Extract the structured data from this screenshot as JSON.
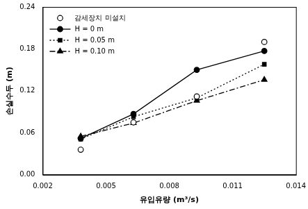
{
  "chart_data": {
    "type": "line",
    "x_label": "유입유량 (m³/s)",
    "y_label": "손실수두 (m)",
    "x": [
      0.0038,
      0.0063,
      0.0093,
      0.0125
    ],
    "series": [
      {
        "name": "감세장치 미설치",
        "color": "#000000",
        "marker": "open_circle",
        "line_style": "none",
        "values": [
          0.036,
          0.075,
          0.112,
          0.19
        ]
      },
      {
        "name": "H = 0 m",
        "color": "#000000",
        "marker": "circle",
        "line_style": "solid",
        "values": [
          0.052,
          0.087,
          0.15,
          0.177
        ]
      },
      {
        "name": "H = 0.05 m",
        "color": "#000000",
        "marker": "square",
        "line_style": "dotted",
        "values": [
          0.051,
          0.083,
          0.11,
          0.158
        ]
      },
      {
        "name": "H = 0.10 m",
        "color": "#000000",
        "marker": "triangle",
        "line_style": "dashdot",
        "values": [
          0.055,
          0.074,
          0.106,
          0.136
        ]
      }
    ],
    "xlim": [
      0.002,
      0.014
    ],
    "xticks": [
      0.002,
      0.005,
      0.008,
      0.011,
      0.014
    ],
    "ylim": [
      0,
      0.24
    ],
    "yticks": [
      {
        "value": 0,
        "label": "0.00"
      },
      0.06,
      0.12,
      0.18,
      0.24
    ],
    "grid": false,
    "legend": "upper left"
  }
}
